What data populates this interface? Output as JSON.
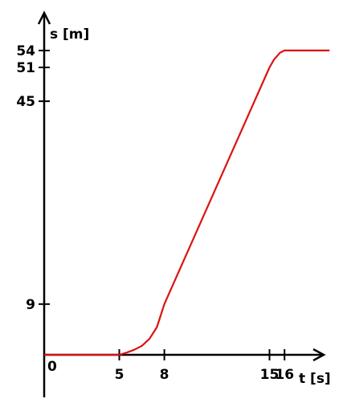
{
  "chart_data": {
    "type": "line",
    "title": "",
    "xlabel": "t [s]",
    "ylabel": "s [m]",
    "origin_label": "0",
    "x_ticks": [
      5,
      8,
      15,
      16
    ],
    "x_tick_labels": [
      "5",
      "8",
      "15",
      "16"
    ],
    "y_ticks": [
      9,
      45,
      51,
      54
    ],
    "y_tick_labels": [
      "9",
      "45",
      "51",
      "54"
    ],
    "xlim": [
      0,
      19.5
    ],
    "ylim": [
      0,
      56
    ],
    "grid": false,
    "series": [
      {
        "color": "#dd1111",
        "x": [
          0,
          5,
          5.5,
          6,
          6.5,
          7,
          7.5,
          8,
          10,
          12,
          14,
          15,
          15.3,
          15.7,
          16,
          19
        ],
        "y": [
          0,
          0,
          0.4,
          0.9,
          1.6,
          2.8,
          4.9,
          9,
          21,
          33,
          45,
          51,
          52.4,
          53.6,
          54,
          54
        ]
      }
    ]
  }
}
